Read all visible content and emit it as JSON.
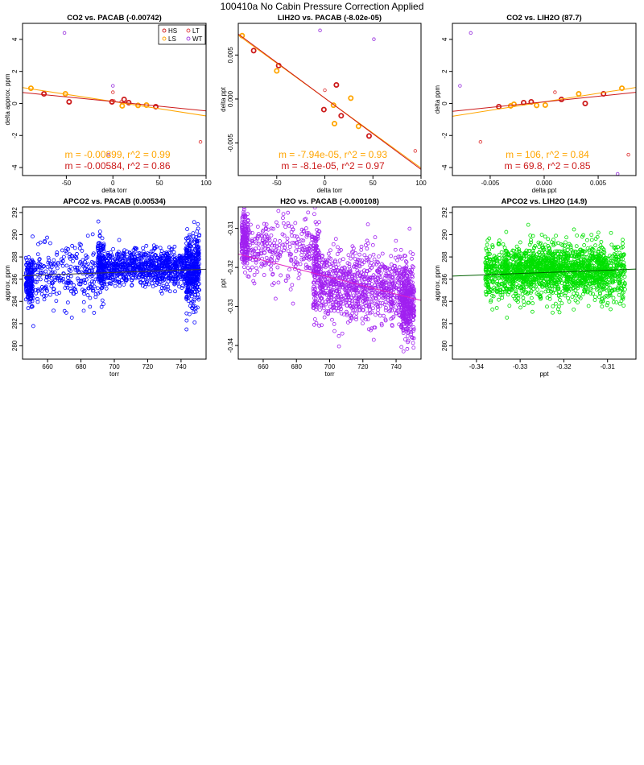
{
  "page_title": "100410a   No Cabin Pressure Correction Applied",
  "colors": {
    "HS": "#cc1a1a",
    "LS": "#ffa500",
    "LT": "#e04040",
    "WT": "#a040e0",
    "blue": "#0000ff",
    "purple": "#a020f0",
    "green": "#00e000"
  },
  "chart_data": [
    {
      "type": "scatter",
      "title": "CO2 vs. PACAB (-0.00742)",
      "xlabel": "delta torr",
      "ylabel": "delta approx. ppm",
      "xlim": [
        -97,
        100
      ],
      "ylim": [
        -4.5,
        5
      ],
      "xticks": [
        "-50",
        "0",
        "50",
        "100"
      ],
      "xtick_values": [
        -50,
        0,
        50,
        100
      ],
      "yticks": [
        "-4",
        "-2",
        "0",
        "2",
        "4"
      ],
      "ytick_values": [
        -4,
        -2,
        0,
        2,
        4
      ],
      "legend": {
        "position": "top-right",
        "entries": [
          "HS",
          "LS",
          "LT",
          "WT"
        ]
      },
      "series": [
        {
          "name": "HS",
          "color": "#cc1a1a",
          "bold": true,
          "points": [
            [
              -74,
              0.6
            ],
            [
              -47,
              0.1
            ],
            [
              -1,
              0.1
            ],
            [
              12,
              0.25
            ],
            [
              17,
              0.05
            ],
            [
              46,
              -0.2
            ]
          ]
        },
        {
          "name": "LS",
          "color": "#ffa500",
          "bold": true,
          "points": [
            [
              -88,
              0.95
            ],
            [
              -51,
              0.6
            ],
            [
              10,
              -0.15
            ],
            [
              27,
              -0.12
            ],
            [
              36,
              -0.1
            ]
          ]
        },
        {
          "name": "LT",
          "color": "#e04040",
          "bold": false,
          "points": [
            [
              0,
              0.7
            ],
            [
              1,
              0.15
            ],
            [
              9,
              0.1
            ],
            [
              94,
              -2.4
            ]
          ]
        },
        {
          "name": "WT",
          "color": "#a040e0",
          "bold": false,
          "points": [
            [
              -52,
              4.4
            ],
            [
              0,
              1.1
            ],
            [
              -5,
              -3.2
            ]
          ]
        }
      ],
      "fits": [
        {
          "color": "#ffa500",
          "slope": -0.00899,
          "intercept": 0.12
        },
        {
          "color": "#cc1a1a",
          "slope": -0.00584,
          "intercept": 0.12
        }
      ],
      "annotations": [
        {
          "text": "m = -0.00899, r^2 = 0.99",
          "color": "#ffa500"
        },
        {
          "text": "m = -0.00584, r^2 = 0.86",
          "color": "#cc1a1a"
        }
      ]
    },
    {
      "type": "scatter",
      "title": "LIH2O vs. PACAB (-8.02e-05)",
      "xlabel": "delta torr",
      "ylabel": "delta ppt",
      "xlim": [
        -90,
        100
      ],
      "ylim": [
        -0.0087,
        0.0086
      ],
      "xticks": [
        "-50",
        "0",
        "50",
        "100"
      ],
      "xtick_values": [
        -50,
        0,
        50,
        100
      ],
      "yticks": [
        "-0.005",
        "0.000",
        "0.005"
      ],
      "ytick_values": [
        -0.005,
        0,
        0.005
      ],
      "series": [
        {
          "name": "HS",
          "color": "#cc1a1a",
          "bold": true,
          "points": [
            [
              -74,
              0.0055
            ],
            [
              -48,
              0.0038
            ],
            [
              -1,
              -0.0012
            ],
            [
              12,
              0.0016
            ],
            [
              17,
              -0.0019
            ],
            [
              46,
              -0.0042
            ]
          ]
        },
        {
          "name": "LS",
          "color": "#ffa500",
          "bold": true,
          "points": [
            [
              -86,
              0.0072
            ],
            [
              -50,
              0.0032
            ],
            [
              9,
              -0.0007
            ],
            [
              10,
              -0.0028
            ],
            [
              27,
              0.0001
            ],
            [
              35,
              -0.0031
            ]
          ]
        },
        {
          "name": "LT",
          "color": "#e04040",
          "bold": false,
          "points": [
            [
              0,
              0.001
            ],
            [
              94,
              -0.0059
            ]
          ]
        },
        {
          "name": "WT",
          "color": "#a040e0",
          "bold": false,
          "points": [
            [
              -5,
              0.0078
            ],
            [
              51,
              0.0068
            ]
          ]
        }
      ],
      "fits": [
        {
          "color": "#ffa500",
          "slope": -7.94e-05,
          "intercept": 0.0001
        },
        {
          "color": "#cc1a1a",
          "slope": -8.1e-05,
          "intercept": 0.0001
        }
      ],
      "annotations": [
        {
          "text": "m = -7.94e-05, r^2 = 0.93",
          "color": "#ffa500"
        },
        {
          "text": "m = -8.1e-05, r^2 = 0.97",
          "color": "#cc1a1a"
        }
      ]
    },
    {
      "type": "scatter",
      "title": "CO2 vs. LIH2O (87.7)",
      "xlabel": "delta ppt",
      "ylabel": "delta ppm",
      "xlim": [
        -0.0085,
        0.0085
      ],
      "ylim": [
        -4.5,
        5
      ],
      "xticks": [
        "-0.005",
        "0.000",
        "0.005"
      ],
      "xtick_values": [
        -0.005,
        0,
        0.005
      ],
      "yticks": [
        "-4",
        "-2",
        "0",
        "2",
        "4"
      ],
      "ytick_values": [
        -4,
        -2,
        0,
        2,
        4
      ],
      "series": [
        {
          "name": "HS",
          "color": "#cc1a1a",
          "bold": true,
          "points": [
            [
              -0.0042,
              -0.2
            ],
            [
              -0.0019,
              0.05
            ],
            [
              -0.0012,
              0.1
            ],
            [
              0.0016,
              0.25
            ],
            [
              0.0038,
              0.0
            ],
            [
              0.0055,
              0.6
            ]
          ]
        },
        {
          "name": "LS",
          "color": "#ffa500",
          "bold": true,
          "points": [
            [
              -0.0031,
              -0.15
            ],
            [
              -0.0028,
              -0.05
            ],
            [
              -0.0007,
              -0.12
            ],
            [
              0.0001,
              -0.1
            ],
            [
              0.0032,
              0.6
            ],
            [
              0.0072,
              0.95
            ]
          ]
        },
        {
          "name": "LT",
          "color": "#e04040",
          "bold": false,
          "points": [
            [
              0.001,
              0.7
            ],
            [
              -0.0059,
              -2.4
            ],
            [
              0.0078,
              -3.2
            ]
          ]
        },
        {
          "name": "WT",
          "color": "#a040e0",
          "bold": false,
          "points": [
            [
              -0.0078,
              1.1
            ],
            [
              -0.0068,
              4.4
            ],
            [
              0.0068,
              -4.4
            ]
          ]
        }
      ],
      "fits": [
        {
          "color": "#ffa500",
          "slope": 106,
          "intercept": 0.1
        },
        {
          "color": "#cc1a1a",
          "slope": 69.8,
          "intercept": 0.1
        }
      ],
      "annotations": [
        {
          "text": "m = 106, r^2 = 0.84",
          "color": "#ffa500"
        },
        {
          "text": "m = 69.8, r^2 = 0.85",
          "color": "#cc1a1a"
        }
      ]
    },
    {
      "type": "scatter",
      "title": "APCO2 vs. PACAB (0.00534)",
      "xlabel": "torr",
      "ylabel": "approx. ppm",
      "xlim": [
        645,
        755
      ],
      "ylim": [
        278.8,
        292.5
      ],
      "xticks": [
        "660",
        "680",
        "700",
        "720",
        "740"
      ],
      "xtick_values": [
        660,
        680,
        700,
        720,
        740
      ],
      "yticks": [
        "280",
        "282",
        "284",
        "286",
        "288",
        "290",
        "292"
      ],
      "ytick_values": [
        280,
        282,
        284,
        286,
        288,
        290,
        292
      ],
      "color": "#0000ff",
      "fit": {
        "slope": 0.00534,
        "x0": 700,
        "y0": 286.6
      },
      "clusters": [
        {
          "x": [
            647,
            651
          ],
          "y_mean": 285.8,
          "y_sd": 1.0,
          "n": 180
        },
        {
          "x": [
            651,
            690
          ],
          "y_mean": 286.3,
          "y_sd": 1.3,
          "n": 260
        },
        {
          "x": [
            690,
            694
          ],
          "y_mean": 287.2,
          "y_sd": 1.3,
          "n": 160
        },
        {
          "x": [
            694,
            743
          ],
          "y_mean": 287.0,
          "y_sd": 0.8,
          "n": 800
        },
        {
          "x": [
            743,
            751
          ],
          "y_mean": 286.8,
          "y_sd": 1.6,
          "n": 380
        }
      ]
    },
    {
      "type": "scatter",
      "title": "H2O vs. PACAB (-0.000108)",
      "xlabel": "torr",
      "ylabel": "ppt",
      "xlim": [
        645,
        755
      ],
      "ylim": [
        -0.3435,
        -0.3045
      ],
      "xticks": [
        "660",
        "680",
        "700",
        "720",
        "740"
      ],
      "xtick_values": [
        660,
        680,
        700,
        720,
        740
      ],
      "yticks": [
        "-0.34",
        "-0.33",
        "-0.32",
        "-0.31"
      ],
      "ytick_values": [
        -0.34,
        -0.33,
        -0.32,
        -0.31
      ],
      "color": "#a020f0",
      "fit": {
        "slope": -0.000108,
        "x0": 700,
        "y0": -0.3225
      },
      "clusters": [
        {
          "x": [
            647,
            651
          ],
          "y_mean": -0.313,
          "y_sd": 0.004,
          "n": 180
        },
        {
          "x": [
            651,
            690
          ],
          "y_mean": -0.316,
          "y_sd": 0.004,
          "n": 260
        },
        {
          "x": [
            690,
            694
          ],
          "y_mean": -0.319,
          "y_sd": 0.006,
          "n": 160
        },
        {
          "x": [
            694,
            743
          ],
          "y_mean": -0.325,
          "y_sd": 0.0045,
          "n": 800
        },
        {
          "x": [
            743,
            751
          ],
          "y_mean": -0.329,
          "y_sd": 0.005,
          "n": 380
        }
      ]
    },
    {
      "type": "scatter",
      "title": "APCO2 vs. LIH2O (14.9)",
      "xlabel": "ppt",
      "ylabel": "approx. ppm",
      "xlim": [
        -0.3455,
        -0.3035
      ],
      "ylim": [
        278.8,
        292.5
      ],
      "xticks": [
        "-0.34",
        "-0.33",
        "-0.32",
        "-0.31"
      ],
      "xtick_values": [
        -0.34,
        -0.33,
        -0.32,
        -0.31
      ],
      "yticks": [
        "280",
        "282",
        "284",
        "286",
        "288",
        "290",
        "292"
      ],
      "ytick_values": [
        280,
        282,
        284,
        286,
        288,
        290,
        292
      ],
      "color": "#00e000",
      "fit": {
        "slope": 14.9,
        "x0": -0.324,
        "y0": 286.6
      },
      "clusters": [
        {
          "x": [
            -0.338,
            -0.306
          ],
          "y_mean": 286.6,
          "y_sd": 1.3,
          "n": 1400
        },
        {
          "x": [
            -0.334,
            -0.31
          ],
          "y_mean": 287.0,
          "y_sd": 0.8,
          "n": 600
        }
      ]
    }
  ]
}
